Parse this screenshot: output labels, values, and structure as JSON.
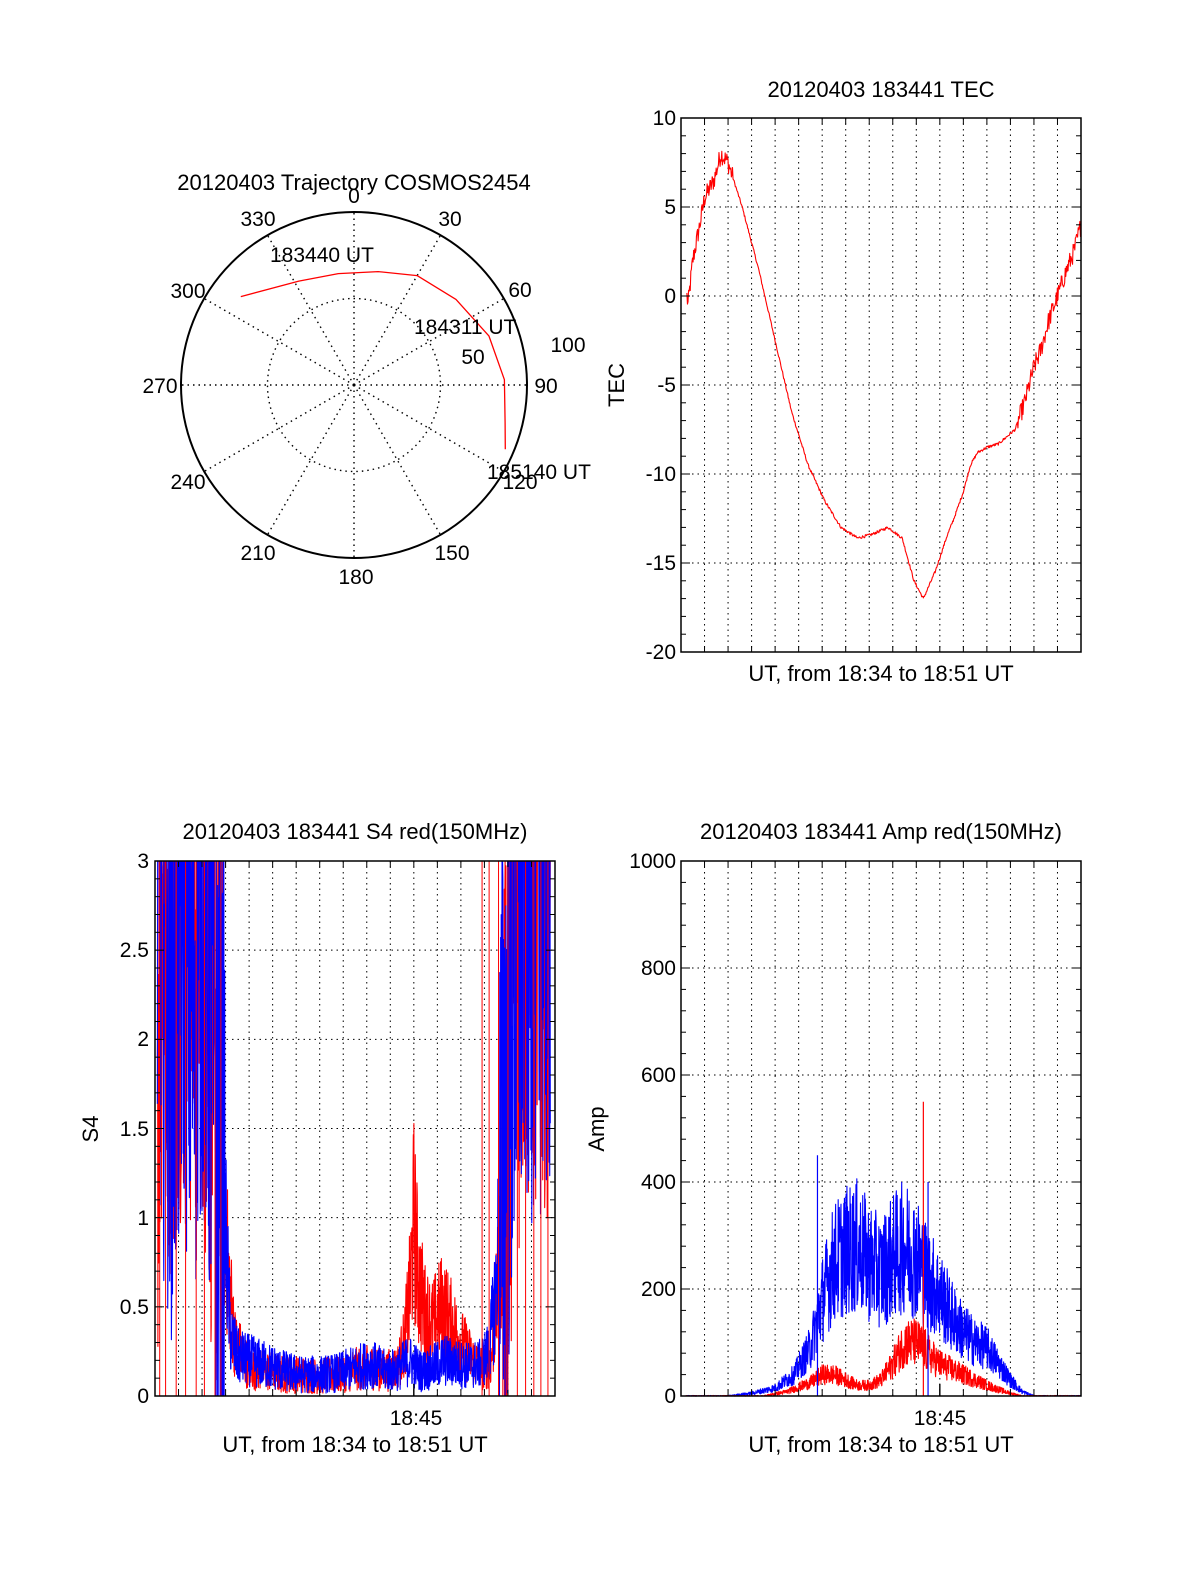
{
  "colors": {
    "red": "#ff0000",
    "blue": "#0000ff",
    "axis": "#000000",
    "grid": "#000000"
  },
  "chart_data": [
    {
      "id": "trajectory",
      "type": "polar-trajectory",
      "title": "20120403 Trajectory COSMOS2454",
      "azimuth_labels": [
        {
          "az": 0,
          "text": "0"
        },
        {
          "az": 30,
          "text": "30"
        },
        {
          "az": 60,
          "text": "60"
        },
        {
          "az": 90,
          "text": "90"
        },
        {
          "az": 120,
          "text": "120"
        },
        {
          "az": 150,
          "text": "150"
        },
        {
          "az": 180,
          "text": "180"
        },
        {
          "az": 210,
          "text": "210"
        },
        {
          "az": 240,
          "text": "240"
        },
        {
          "az": 270,
          "text": "270"
        },
        {
          "az": 300,
          "text": "300"
        },
        {
          "az": 330,
          "text": "330"
        }
      ],
      "radius_max": 100,
      "radius_rings": [
        50,
        100
      ],
      "ring_labels": [
        {
          "r": 50,
          "text": "50"
        },
        {
          "r": 100,
          "text": "100"
        }
      ],
      "track": [
        {
          "az": 308,
          "r": 83
        },
        {
          "az": 332,
          "r": 68
        },
        {
          "az": 352,
          "r": 65
        },
        {
          "az": 12,
          "r": 67
        },
        {
          "az": 30,
          "r": 73
        },
        {
          "az": 50,
          "r": 77
        },
        {
          "az": 70,
          "r": 83
        },
        {
          "az": 88,
          "r": 87
        },
        {
          "az": 104,
          "r": 90
        },
        {
          "az": 113,
          "r": 95
        }
      ],
      "time_labels": [
        {
          "text": "183440 UT",
          "az": 315,
          "r": 80
        },
        {
          "text": "184311 UT",
          "az": 58,
          "r": 73
        },
        {
          "text": "185140 UT",
          "az": 113,
          "r": 95
        }
      ]
    },
    {
      "id": "tec",
      "type": "line",
      "title": "20120403 183441 TEC",
      "xlabel": "UT, from 18:34 to 18:51 UT",
      "ylabel": "TEC",
      "xlim_min": [
        34,
        51
      ],
      "ylim": [
        -20,
        10
      ],
      "yticks": [
        10,
        5,
        0,
        -5,
        -10,
        -15,
        -20
      ],
      "grid": true,
      "series": [
        {
          "color": "red",
          "x": [
            34.25,
            34.3,
            34.5,
            34.8,
            35.0,
            35.4,
            35.7,
            36.0,
            36.6,
            37.3,
            38.0,
            38.7,
            39.4,
            40.1,
            40.8,
            41.5,
            42.1,
            42.8,
            43.4,
            43.9,
            44.3,
            44.8,
            45.3,
            45.6,
            46.0,
            46.3,
            46.6,
            47.0,
            47.5,
            48.2,
            48.6,
            48.8,
            49.0,
            49.3,
            49.6,
            50.0,
            50.4,
            50.7,
            51.0
          ],
          "y": [
            0,
            -0.5,
            2.0,
            4.0,
            5.5,
            6.5,
            8.0,
            7.5,
            5.0,
            1.5,
            -2.5,
            -6.5,
            -9.5,
            -11.5,
            -13.0,
            -13.6,
            -13.4,
            -13.0,
            -13.6,
            -16.0,
            -17.0,
            -15.5,
            -13.5,
            -12.5,
            -11.0,
            -9.5,
            -8.8,
            -8.5,
            -8.3,
            -7.5,
            -6.0,
            -5.0,
            -4.0,
            -3.0,
            -1.5,
            0.0,
            1.5,
            2.5,
            4.0
          ]
        }
      ]
    },
    {
      "id": "s4",
      "type": "line",
      "title": "20120403 183441 S4 red(150MHz)",
      "xlabel": "UT, from 18:34 to 18:51 UT",
      "ylabel": "S4",
      "xtick_labels": [
        {
          "x": 45,
          "text": "18:45"
        }
      ],
      "xlim_min": [
        34,
        51
      ],
      "ylim": [
        0,
        3
      ],
      "yticks": [
        0,
        0.5,
        1,
        1.5,
        2,
        2.5,
        3
      ],
      "grid": true,
      "series": [
        {
          "color": "red",
          "x": [
            34.1,
            34.3,
            34.6,
            35.0,
            35.5,
            36.0,
            36.5,
            36.9,
            37.1,
            37.4,
            38.0,
            38.8,
            39.5,
            40.2,
            41.0,
            41.8,
            42.5,
            43.2,
            43.8,
            44.3,
            44.6,
            44.85,
            45.0,
            45.2,
            45.5,
            45.8,
            46.2,
            46.6,
            47.0,
            47.5,
            48.0,
            48.3,
            48.7,
            49.2,
            49.7,
            50.3,
            50.8
          ],
          "y": [
            2.0,
            3.0,
            2.6,
            3.0,
            2.8,
            3.0,
            2.0,
            1.1,
            0.7,
            0.3,
            0.16,
            0.14,
            0.12,
            0.12,
            0.11,
            0.12,
            0.15,
            0.16,
            0.14,
            0.16,
            0.3,
            0.6,
            1.0,
            0.65,
            0.45,
            0.4,
            0.5,
            0.4,
            0.3,
            0.2,
            0.15,
            0.2,
            0.8,
            2.5,
            3.0,
            3.0,
            3.0
          ]
        },
        {
          "color": "blue",
          "x": [
            34.1,
            34.4,
            34.8,
            35.2,
            35.6,
            36.0,
            36.4,
            36.9,
            37.2,
            37.5,
            38.0,
            38.8,
            39.5,
            40.2,
            41.0,
            41.8,
            42.5,
            43.2,
            43.8,
            44.3,
            44.8,
            45.3,
            45.8,
            46.3,
            46.8,
            47.3,
            47.8,
            48.2,
            48.5,
            48.8,
            49.2,
            49.7,
            50.2,
            50.8
          ],
          "y": [
            3.0,
            2.6,
            2.2,
            3.0,
            2.3,
            3.0,
            2.2,
            1.2,
            0.35,
            0.22,
            0.2,
            0.17,
            0.14,
            0.12,
            0.12,
            0.13,
            0.16,
            0.18,
            0.14,
            0.15,
            0.2,
            0.14,
            0.16,
            0.2,
            0.18,
            0.17,
            0.18,
            0.25,
            0.6,
            1.5,
            2.4,
            2.9,
            3.0,
            3.0
          ]
        }
      ]
    },
    {
      "id": "amp",
      "type": "line",
      "title": "20120403 183441 Amp red(150MHz)",
      "xlabel": "UT, from 18:34 to 18:51 UT",
      "ylabel": "Amp",
      "xtick_labels": [
        {
          "x": 45,
          "text": "18:45"
        }
      ],
      "xlim_min": [
        34,
        51
      ],
      "ylim": [
        0,
        1000
      ],
      "yticks": [
        0,
        200,
        400,
        600,
        800,
        1000
      ],
      "grid": true,
      "series": [
        {
          "color": "blue",
          "x": [
            34.2,
            36.0,
            37.0,
            38.0,
            38.8,
            39.5,
            40.0,
            40.5,
            41.0,
            41.5,
            42.0,
            42.5,
            43.0,
            43.5,
            44.0,
            44.5,
            45.0,
            45.5,
            46.0,
            46.5,
            47.0,
            47.5,
            48.0,
            48.5,
            49.0,
            51.0
          ],
          "y": [
            0,
            0,
            5,
            15,
            40,
            90,
            180,
            250,
            270,
            280,
            250,
            230,
            260,
            280,
            260,
            220,
            190,
            150,
            120,
            100,
            90,
            60,
            30,
            8,
            0,
            0
          ]
        },
        {
          "color": "red",
          "x": [
            34.2,
            37.5,
            38.5,
            39.5,
            40.0,
            40.5,
            41.0,
            41.5,
            42.0,
            42.5,
            43.0,
            43.5,
            44.0,
            44.3,
            44.6,
            45.0,
            45.5,
            46.0,
            46.5,
            47.0,
            47.5,
            48.0,
            48.5,
            51.0
          ],
          "y": [
            0,
            0,
            8,
            25,
            40,
            40,
            30,
            20,
            20,
            30,
            60,
            100,
            100,
            90,
            75,
            60,
            50,
            40,
            30,
            20,
            12,
            5,
            0,
            0
          ]
        }
      ],
      "spikes": [
        {
          "color": "red",
          "x": 44.3,
          "y": 550
        },
        {
          "color": "blue",
          "x": 39.8,
          "y": 450
        },
        {
          "color": "blue",
          "x": 44.5,
          "y": 400
        }
      ]
    }
  ]
}
